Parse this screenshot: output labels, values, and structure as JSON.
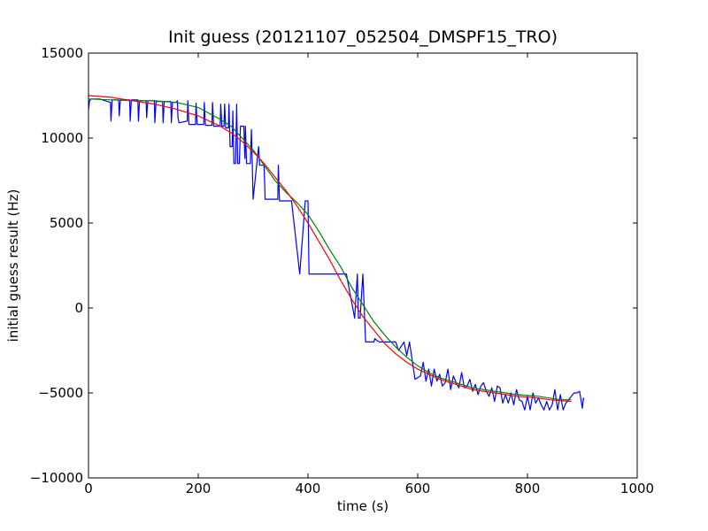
{
  "chart_data": {
    "type": "line",
    "title": "Init guess (20121107_052504_DMSPF15_TRO)",
    "xlabel": "time (s)",
    "ylabel": "initial guess result (Hz)",
    "xlim": [
      0,
      1000
    ],
    "ylim": [
      -10000,
      15000
    ],
    "xticks": [
      "0",
      "200",
      "400",
      "600",
      "800",
      "1000"
    ],
    "yticks": [
      "−10000",
      "−5000",
      "0",
      "5000",
      "10000",
      "15000"
    ],
    "grid": false,
    "colors": {
      "blue": "#0000ff",
      "green": "#008000",
      "red": "#ff0000"
    },
    "series": [
      {
        "color": "blue",
        "x": [
          0,
          2,
          5,
          20,
          40,
          41,
          43,
          55,
          56,
          58,
          75,
          76,
          78,
          90,
          91,
          93,
          105,
          106,
          108,
          120,
          121,
          123,
          135,
          136,
          138,
          150,
          151,
          153,
          160,
          162,
          163,
          165,
          180,
          181,
          183,
          195,
          196,
          198,
          210,
          211,
          213,
          225,
          226,
          228,
          240,
          241,
          243,
          247,
          248,
          250,
          255,
          256,
          258,
          262,
          263,
          265,
          268,
          270,
          272,
          275,
          277,
          283,
          285,
          286,
          288,
          295,
          297,
          300,
          310,
          312,
          315,
          320,
          322,
          325,
          345,
          346,
          348,
          355,
          358,
          360,
          370,
          385,
          395,
          400,
          402,
          405,
          445,
          448,
          450,
          460,
          470,
          485,
          490,
          492,
          495,
          500,
          505,
          520,
          522,
          525,
          530,
          533,
          535,
          540,
          545,
          555,
          560,
          565,
          575,
          580,
          585,
          595,
          605,
          610,
          615,
          620,
          625,
          627,
          630,
          635,
          640,
          645,
          650,
          655,
          660,
          665,
          670,
          675,
          680,
          685,
          690,
          695,
          700,
          705,
          710,
          715,
          720,
          725,
          730,
          735,
          740,
          745,
          750,
          755,
          760,
          765,
          770,
          775,
          780,
          785,
          790,
          795,
          800,
          805,
          810,
          815,
          820,
          825,
          830,
          835,
          840,
          845,
          850,
          855,
          860,
          865,
          870,
          875,
          880,
          885,
          890,
          895,
          900,
          902,
          903
        ],
        "y": [
          11700,
          12200,
          12300,
          12300,
          12100,
          11000,
          12250,
          12250,
          11300,
          12250,
          12250,
          11000,
          12250,
          12250,
          11000,
          12200,
          12200,
          11200,
          12200,
          12200,
          10900,
          12150,
          12150,
          10900,
          12150,
          12150,
          10900,
          12100,
          12100,
          12200,
          11200,
          10900,
          11000,
          12200,
          10800,
          10800,
          12050,
          10800,
          10800,
          12100,
          10750,
          10750,
          12100,
          10700,
          10700,
          12000,
          10700,
          10700,
          12000,
          10600,
          10600,
          12000,
          9500,
          9500,
          11600,
          8500,
          8500,
          12000,
          8500,
          8500,
          10700,
          10700,
          8800,
          10700,
          8500,
          8500,
          10500,
          6400,
          9500,
          8400,
          8400,
          8400,
          6400,
          6400,
          6400,
          8400,
          6300,
          6300,
          6300,
          6300,
          6300,
          2000,
          6300,
          6300,
          2000,
          2000,
          2000,
          2000,
          2000,
          2000,
          2000,
          -600,
          2000,
          -600,
          -600,
          2000,
          -2000,
          -2000,
          -1800,
          -1900,
          -2000,
          -2000,
          -2000,
          -2000,
          -2000,
          -2000,
          -2000,
          -2500,
          -2000,
          -2800,
          -2000,
          -4200,
          -4000,
          -3200,
          -4300,
          -3600,
          -4600,
          -4200,
          -3600,
          -4300,
          -3900,
          -4600,
          -4400,
          -3600,
          -4800,
          -4000,
          -4400,
          -4700,
          -3800,
          -4700,
          -4600,
          -4200,
          -4900,
          -4500,
          -5100,
          -4600,
          -4400,
          -4900,
          -5200,
          -4700,
          -5500,
          -4600,
          -4700,
          -5600,
          -5100,
          -5600,
          -5000,
          -5700,
          -4800,
          -5400,
          -5500,
          -6000,
          -5200,
          -6000,
          -5000,
          -5600,
          -5300,
          -5700,
          -6000,
          -5500,
          -6000,
          -5700,
          -4800,
          -6000,
          -5100,
          -6000,
          -5600,
          -5400,
          -5200,
          -5000,
          -5000,
          -4900,
          -5900,
          -5300,
          -5400
        ]
      },
      {
        "color": "green",
        "x": [
          0,
          40,
          80,
          120,
          160,
          200,
          240,
          260,
          280,
          300,
          320,
          340,
          360,
          380,
          400,
          420,
          440,
          460,
          480,
          500,
          520,
          540,
          560,
          580,
          600,
          620,
          640,
          660,
          680,
          700,
          720,
          740,
          760,
          780,
          800,
          820,
          840,
          860,
          880
        ],
        "y": [
          12300,
          12250,
          12200,
          12200,
          12100,
          11800,
          11100,
          10700,
          10000,
          9300,
          8400,
          7500,
          6800,
          6200,
          5500,
          4500,
          3400,
          2400,
          1200,
          200,
          -800,
          -1600,
          -2300,
          -2900,
          -3400,
          -3800,
          -4100,
          -4300,
          -4500,
          -4700,
          -4800,
          -4900,
          -5000,
          -5100,
          -5150,
          -5200,
          -5300,
          -5400,
          -5400
        ]
      },
      {
        "color": "red",
        "x": [
          0,
          40,
          80,
          120,
          160,
          200,
          240,
          260,
          280,
          300,
          320,
          340,
          360,
          380,
          400,
          420,
          440,
          460,
          480,
          500,
          520,
          540,
          560,
          580,
          600,
          620,
          640,
          660,
          680,
          700,
          720,
          740,
          760,
          780,
          800,
          820,
          840,
          860,
          880
        ],
        "y": [
          12500,
          12400,
          12200,
          12000,
          11700,
          11300,
          10700,
          10300,
          9800,
          9200,
          8500,
          7700,
          6900,
          6000,
          5000,
          3900,
          2800,
          1600,
          500,
          -500,
          -1300,
          -2100,
          -2700,
          -3200,
          -3600,
          -3900,
          -4200,
          -4400,
          -4600,
          -4800,
          -4900,
          -5000,
          -5100,
          -5200,
          -5250,
          -5300,
          -5400,
          -5450,
          -5500
        ]
      }
    ]
  }
}
